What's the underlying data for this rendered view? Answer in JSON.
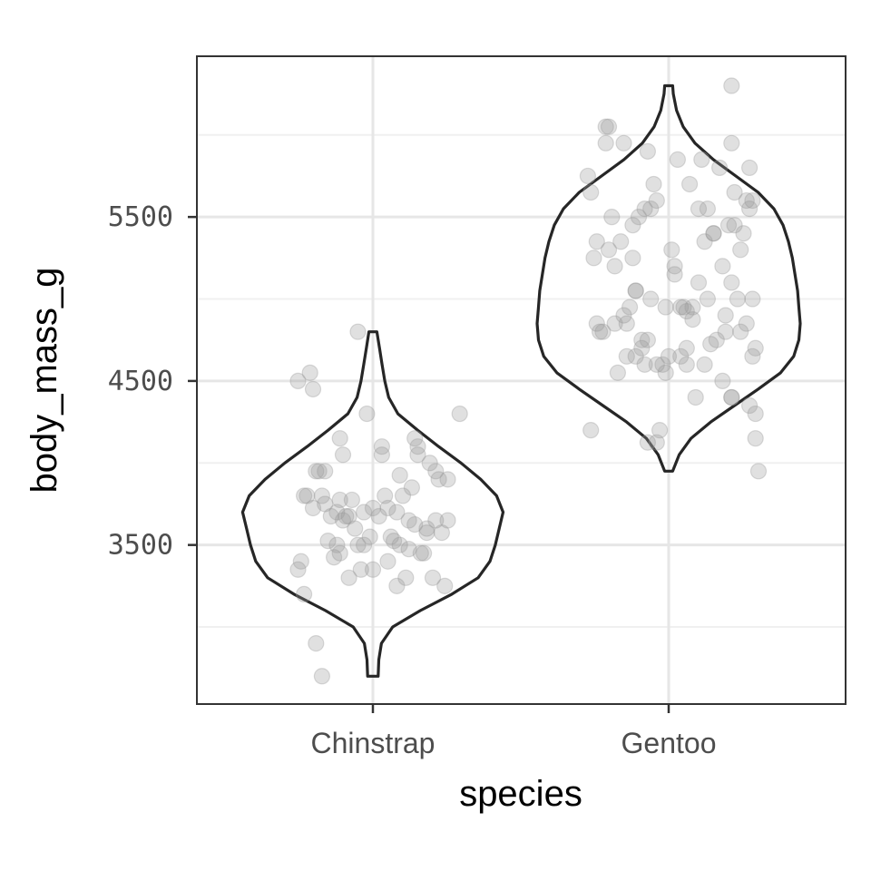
{
  "chart_data": {
    "type": "violin",
    "title": "",
    "xlabel": "species",
    "ylabel": "body_mass_g",
    "categories": [
      "Chinstrap",
      "Gentoo"
    ],
    "yticks": [
      3500,
      4500,
      5500
    ],
    "ylim": [
      2530,
      6480
    ],
    "grid": true,
    "colors": {
      "violin_stroke": "#262626",
      "point_fill": "#999999",
      "grid_major": "#e6e6e6",
      "grid_minor": "#f0f0f0",
      "panel_border": "#333333"
    },
    "violins": [
      {
        "category": "Chinstrap",
        "range": [
          2700,
          4800
        ],
        "density": [
          [
            2700,
            0.04
          ],
          [
            2800,
            0.045
          ],
          [
            2900,
            0.065
          ],
          [
            3000,
            0.15
          ],
          [
            3100,
            0.36
          ],
          [
            3200,
            0.6
          ],
          [
            3300,
            0.8
          ],
          [
            3400,
            0.89
          ],
          [
            3500,
            0.93
          ],
          [
            3600,
            0.96
          ],
          [
            3700,
            0.99
          ],
          [
            3800,
            0.94
          ],
          [
            3900,
            0.82
          ],
          [
            4000,
            0.67
          ],
          [
            4100,
            0.5
          ],
          [
            4200,
            0.34
          ],
          [
            4300,
            0.19
          ],
          [
            4400,
            0.12
          ],
          [
            4500,
            0.09
          ],
          [
            4600,
            0.07
          ],
          [
            4700,
            0.05
          ],
          [
            4800,
            0.03
          ]
        ],
        "points": [
          [
            -0.15,
            3525
          ],
          [
            0.12,
            3475
          ],
          [
            -0.03,
            3700
          ],
          [
            0.08,
            3250
          ],
          [
            -0.22,
            3800
          ],
          [
            -0.1,
            3650
          ],
          [
            0.18,
            3600
          ],
          [
            0.05,
            3400
          ],
          [
            -0.18,
            3950
          ],
          [
            0.22,
            3900
          ],
          [
            0.15,
            4100
          ],
          [
            -0.2,
            4450
          ],
          [
            0.0,
            3725
          ],
          [
            0.06,
            3550
          ],
          [
            -0.05,
            3500
          ],
          [
            0.25,
            3650
          ],
          [
            -0.12,
            3700
          ],
          [
            0.1,
            3800
          ],
          [
            -0.25,
            3350
          ],
          [
            0.03,
            4050
          ],
          [
            -0.08,
            3300
          ],
          [
            0.2,
            3300
          ],
          [
            -0.16,
            3750
          ],
          [
            0.14,
            3625
          ],
          [
            -0.02,
            4300
          ],
          [
            0.09,
            3500
          ],
          [
            -0.23,
            3200
          ],
          [
            0.17,
            3450
          ],
          [
            -0.11,
            3775
          ],
          [
            0.24,
            3250
          ],
          [
            -0.19,
            3950
          ],
          [
            0.04,
            3800
          ],
          [
            -0.06,
            3600
          ],
          [
            0.13,
            3850
          ],
          [
            -0.14,
            3675
          ],
          [
            0.21,
            3950
          ],
          [
            -0.21,
            4550
          ],
          [
            0.07,
            3525
          ],
          [
            -0.01,
            3550
          ],
          [
            0.16,
            3450
          ],
          [
            -0.17,
            3800
          ],
          [
            0.11,
            3300
          ],
          [
            -0.09,
            3675
          ],
          [
            0.19,
            4000
          ],
          [
            -0.24,
            3400
          ],
          [
            0.02,
            3675
          ],
          [
            -0.13,
            3425
          ],
          [
            0.23,
            3575
          ],
          [
            -0.04,
            3350
          ],
          [
            0.14,
            4150
          ],
          [
            -0.2,
            3725
          ],
          [
            0.08,
            3700
          ],
          [
            -0.03,
            3500
          ],
          [
            0.18,
            3575
          ],
          [
            -0.16,
            3950
          ],
          [
            0.05,
            3725
          ],
          [
            -0.25,
            4500
          ],
          [
            0.12,
            3650
          ],
          [
            -0.07,
            3775
          ],
          [
            0.25,
            3900
          ],
          [
            -0.11,
            3450
          ],
          [
            0.03,
            4100
          ],
          [
            -0.19,
            2900
          ],
          [
            0.15,
            4050
          ],
          [
            -0.08,
            3675
          ],
          [
            0.21,
            3650
          ],
          [
            0.0,
            3350
          ],
          [
            -0.12,
            3500
          ],
          [
            -0.17,
            2700
          ],
          [
            0.29,
            4300
          ],
          [
            -0.1,
            4050
          ],
          [
            -0.11,
            4150
          ],
          [
            -0.05,
            4800
          ],
          [
            0.09,
            3925
          ],
          [
            -0.23,
            3800
          ]
        ]
      },
      {
        "category": "Gentoo",
        "range": [
          3950,
          6300
        ],
        "density": [
          [
            3950,
            0.03
          ],
          [
            4050,
            0.08
          ],
          [
            4150,
            0.17
          ],
          [
            4250,
            0.32
          ],
          [
            4350,
            0.5
          ],
          [
            4450,
            0.68
          ],
          [
            4550,
            0.85
          ],
          [
            4650,
            0.95
          ],
          [
            4750,
            0.99
          ],
          [
            4850,
            1.0
          ],
          [
            4950,
            0.99
          ],
          [
            5050,
            0.98
          ],
          [
            5150,
            0.96
          ],
          [
            5250,
            0.94
          ],
          [
            5350,
            0.91
          ],
          [
            5450,
            0.87
          ],
          [
            5550,
            0.8
          ],
          [
            5650,
            0.68
          ],
          [
            5750,
            0.51
          ],
          [
            5850,
            0.34
          ],
          [
            5950,
            0.2
          ],
          [
            6050,
            0.11
          ],
          [
            6150,
            0.06
          ],
          [
            6250,
            0.035
          ],
          [
            6300,
            0.03
          ]
        ],
        "points": [
          [
            -0.21,
            6050
          ],
          [
            0.11,
            5850
          ],
          [
            -0.06,
            5550
          ],
          [
            0.15,
            5400
          ],
          [
            -0.24,
            4850
          ],
          [
            0.02,
            5150
          ],
          [
            0.24,
            5300
          ],
          [
            -0.14,
            4650
          ],
          [
            0.08,
            4950
          ],
          [
            0.28,
            5000
          ],
          [
            -0.09,
            4750
          ],
          [
            0.18,
            5200
          ],
          [
            -0.04,
            4600
          ],
          [
            0.06,
            4700
          ],
          [
            0.21,
            4400
          ],
          [
            -0.19,
            5500
          ],
          [
            0.13,
            5000
          ],
          [
            -0.01,
            4550
          ],
          [
            0.27,
            5800
          ],
          [
            -0.26,
            5650
          ],
          [
            0.04,
            4650
          ],
          [
            -0.11,
            5050
          ],
          [
            0.19,
            4800
          ],
          [
            -0.16,
            5350
          ],
          [
            0.09,
            4400
          ],
          [
            -0.07,
            4750
          ],
          [
            0.22,
            5650
          ],
          [
            -0.22,
            4800
          ],
          [
            0.01,
            5300
          ],
          [
            0.16,
            4750
          ],
          [
            -0.12,
            5250
          ],
          [
            0.26,
            4850
          ],
          [
            -0.03,
            4200
          ],
          [
            0.1,
            5100
          ],
          [
            -0.18,
            4850
          ],
          [
            0.14,
            4725
          ],
          [
            -0.08,
            5550
          ],
          [
            0.25,
            5400
          ],
          [
            -0.25,
            5250
          ],
          [
            0.05,
            4950
          ],
          [
            -0.14,
            4850
          ],
          [
            0.2,
            5450
          ],
          [
            -0.05,
            5700
          ],
          [
            0.12,
            4600
          ],
          [
            -0.2,
            5300
          ],
          [
            0.03,
            5850
          ],
          [
            0.29,
            4700
          ],
          [
            -0.1,
            5500
          ],
          [
            0.17,
            5800
          ],
          [
            -0.23,
            4800
          ],
          [
            0.07,
            5700
          ],
          [
            -0.02,
            4600
          ],
          [
            0.23,
            5000
          ],
          [
            -0.17,
            4550
          ],
          [
            0.15,
            5400
          ],
          [
            -0.06,
            5000
          ],
          [
            0.27,
            4350
          ],
          [
            -0.27,
            5750
          ],
          [
            0.0,
            4650
          ],
          [
            0.1,
            5550
          ],
          [
            -0.13,
            4950
          ],
          [
            0.21,
            5950
          ],
          [
            -0.09,
            4700
          ],
          [
            0.18,
            4500
          ],
          [
            -0.21,
            5950
          ],
          [
            0.06,
            4600
          ],
          [
            -0.04,
            5600
          ],
          [
            0.28,
            5600
          ],
          [
            -0.15,
            4900
          ],
          [
            0.02,
            5200
          ],
          [
            0.24,
            4800
          ],
          [
            -0.18,
            5200
          ],
          [
            0.13,
            5550
          ],
          [
            -0.08,
            4600
          ],
          [
            0.19,
            4900
          ],
          [
            -0.24,
            5350
          ],
          [
            0.04,
            4950
          ],
          [
            -0.11,
            4650
          ],
          [
            0.26,
            5600
          ],
          [
            -0.01,
            4950
          ],
          [
            0.29,
            4150
          ],
          [
            -0.26,
            4200
          ],
          [
            0.08,
            4875
          ],
          [
            -0.07,
            4125
          ],
          [
            0.22,
            5450
          ],
          [
            -0.15,
            5950
          ],
          [
            0.12,
            5350
          ],
          [
            -0.2,
            6050
          ],
          [
            0.06,
            4925
          ],
          [
            0.28,
            4650
          ],
          [
            0.21,
            4400
          ],
          [
            0.29,
            4300
          ],
          [
            -0.07,
            5900
          ],
          [
            0.21,
            5100
          ],
          [
            0.3,
            3950
          ],
          [
            0.21,
            6300
          ],
          [
            0.27,
            5550
          ],
          [
            -0.12,
            5450
          ],
          [
            -0.11,
            5050
          ],
          [
            -0.04,
            4125
          ]
        ]
      }
    ]
  }
}
